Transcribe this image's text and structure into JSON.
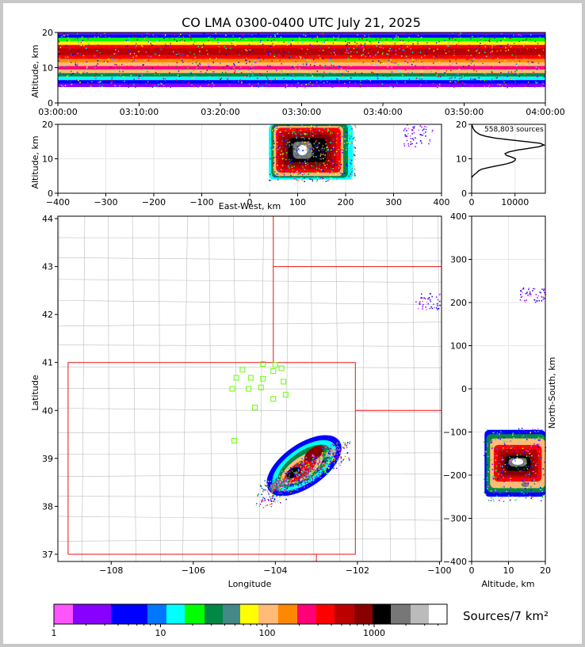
{
  "chart_data": {
    "type": "heatmap",
    "title": "CO LMA 0300-0400 UTC July 21, 2025",
    "time_height": {
      "ylabel": "Altitude, km",
      "ylim": [
        0,
        20
      ],
      "yticks": [
        "0",
        "10",
        "20"
      ],
      "xticks": [
        "03:00:00",
        "03:10:00",
        "03:20:00",
        "03:30:00",
        "03:40:00",
        "03:50:00",
        "04:00:00"
      ]
    },
    "ew_height": {
      "xlabel": "East-West, km",
      "ylabel": "Altitude, km",
      "xlim": [
        -400,
        400
      ],
      "ylim": [
        0,
        20
      ],
      "xticks": [
        "−400",
        "−300",
        "−200",
        "−100",
        "0",
        "100",
        "200",
        "300",
        "400"
      ],
      "yticks": [
        "0",
        "10",
        "20"
      ]
    },
    "histogram": {
      "annotation": "558,803 sources",
      "xticks": [
        "0",
        "10000"
      ],
      "yticks": [
        "0",
        "10",
        "20"
      ],
      "profile": [
        [
          0,
          4.5
        ],
        [
          250,
          5
        ],
        [
          700,
          5.5
        ],
        [
          1200,
          6
        ],
        [
          1600,
          6.5
        ],
        [
          2300,
          7
        ],
        [
          4000,
          7.5
        ],
        [
          6000,
          8
        ],
        [
          8000,
          8.5
        ],
        [
          9300,
          9
        ],
        [
          10000,
          9.5
        ],
        [
          10100,
          10
        ],
        [
          9200,
          10.5
        ],
        [
          8000,
          11
        ],
        [
          7700,
          11.5
        ],
        [
          8600,
          12
        ],
        [
          10500,
          12.5
        ],
        [
          13000,
          13
        ],
        [
          15500,
          13.5
        ],
        [
          16700,
          14
        ],
        [
          15800,
          14.5
        ],
        [
          12500,
          15
        ],
        [
          8800,
          15.5
        ],
        [
          5500,
          16
        ],
        [
          3300,
          16.5
        ],
        [
          2000,
          17
        ],
        [
          1300,
          17.5
        ],
        [
          800,
          18
        ],
        [
          500,
          18.5
        ],
        [
          300,
          19
        ],
        [
          150,
          19.5
        ],
        [
          80,
          20
        ]
      ]
    },
    "plan_view": {
      "xlabel": "Longitude",
      "ylabel": "Latitude",
      "xlim": [
        -109.3,
        -99.95
      ],
      "ylim": [
        36.85,
        44.05
      ],
      "xticks": [
        "−108",
        "−106",
        "−104",
        "−102",
        "−100"
      ],
      "yticks": [
        "37",
        "38",
        "39",
        "40",
        "41",
        "42",
        "43",
        "44"
      ],
      "stations": [
        [
          -104.0,
          40.95
        ],
        [
          -104.3,
          40.97
        ],
        [
          -104.8,
          40.85
        ],
        [
          -103.85,
          40.88
        ],
        [
          -104.05,
          40.82
        ],
        [
          -104.95,
          40.68
        ],
        [
          -104.6,
          40.68
        ],
        [
          -104.3,
          40.66
        ],
        [
          -103.8,
          40.6
        ],
        [
          -104.35,
          40.48
        ],
        [
          -104.65,
          40.45
        ],
        [
          -105.05,
          40.45
        ],
        [
          -103.75,
          40.33
        ],
        [
          -104.05,
          40.24
        ],
        [
          -104.5,
          40.06
        ],
        [
          -105.0,
          39.37
        ]
      ]
    },
    "ns_height": {
      "xlabel": "Altitude, km",
      "ylabel": "North-South, km",
      "xlim": [
        0,
        20
      ],
      "ylim": [
        -400,
        400
      ],
      "xticks": [
        "0",
        "10",
        "20"
      ],
      "yticks": [
        "−400",
        "−300",
        "−200",
        "−100",
        "0",
        "100",
        "200",
        "300",
        "400"
      ]
    },
    "colorbar": {
      "label": "Sources/7 km²",
      "ticks": [
        "1",
        "10",
        "100",
        "1000"
      ],
      "colors": [
        "#ff55ff",
        "#8800ff",
        "#8800ff",
        "#0000ff",
        "#0000ff",
        "#0077ff",
        "#00ffff",
        "#00ff00",
        "#008844",
        "#448888",
        "#ffff00",
        "#ffbb77",
        "#ff8800",
        "#ff0077",
        "#ff0000",
        "#bb0000",
        "#880000",
        "#000000",
        "#777777",
        "#bbbbbb",
        "#ffffff"
      ]
    }
  }
}
